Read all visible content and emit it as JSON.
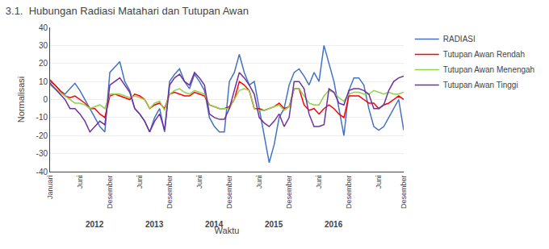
{
  "chart_data": {
    "type": "line",
    "title": "3.1.  Hubungan Radiasi Matahari dan Tutupan Awan",
    "ylabel": "Normalisasi",
    "xlabel": "Waktu",
    "categories": [
      "Januari",
      null,
      null,
      null,
      null,
      null,
      "Juni",
      null,
      null,
      null,
      null,
      null,
      "Desember",
      null,
      null,
      null,
      null,
      null,
      "Juni",
      null,
      null,
      null,
      null,
      null,
      "Desember",
      null,
      null,
      null,
      null,
      null,
      "Juni",
      null,
      null,
      null,
      null,
      null,
      "Desember",
      null,
      null,
      null,
      null,
      null,
      "Juni",
      null,
      null,
      null,
      null,
      null,
      "Desember",
      null,
      null,
      null,
      null,
      null,
      "Juni",
      null,
      null,
      null,
      null,
      null,
      "Desember",
      null,
      null,
      null,
      null,
      null,
      "Juni",
      null,
      null,
      null,
      null,
      "Desember"
    ],
    "series": [
      {
        "name": "RADIASI",
        "color": "#4472C4",
        "values": [
          10,
          8,
          5,
          3,
          6,
          9,
          5,
          0,
          -5,
          -10,
          -15,
          -18,
          15,
          18,
          21,
          10,
          5,
          -5,
          -8,
          -12,
          -18,
          -10,
          -5,
          -18,
          10,
          14,
          17,
          10,
          6,
          14,
          10,
          5,
          -10,
          -15,
          -18,
          -18,
          10,
          15,
          25,
          15,
          8,
          10,
          -5,
          -20,
          -35,
          -25,
          -10,
          -5,
          8,
          15,
          17,
          13,
          8,
          15,
          10,
          30,
          20,
          10,
          -5,
          -20,
          5,
          12,
          12,
          8,
          -5,
          -15,
          -17,
          -15,
          -10,
          -5,
          0,
          -17
        ]
      },
      {
        "name": "Tutupan Awan Rendah",
        "color": "#FF0000",
        "values": [
          11,
          8,
          5,
          2,
          1,
          2,
          0,
          -2,
          -5,
          -5,
          -8,
          -10,
          2,
          3,
          2,
          1,
          0,
          3,
          2,
          0,
          -5,
          -3,
          -2,
          -5,
          3,
          4,
          3,
          2,
          2,
          4,
          3,
          2,
          -3,
          -4,
          -5,
          -5,
          -4,
          0,
          10,
          8,
          5,
          -5,
          -5,
          -6,
          -5,
          -4,
          -2,
          -5,
          -4,
          6,
          6,
          -3,
          -6,
          -5,
          -8,
          -5,
          -3,
          -5,
          -8,
          -10,
          2,
          2,
          2,
          0,
          -2,
          -2,
          -5,
          -3,
          -2,
          0,
          2,
          0
        ]
      },
      {
        "name": "Tutupan Awan Menengah",
        "color": "#92D050",
        "values": [
          8,
          6,
          4,
          2,
          0,
          -2,
          -2,
          -3,
          -5,
          -4,
          -3,
          -5,
          3,
          3,
          3,
          2,
          1,
          2,
          1,
          0,
          -5,
          -2,
          -1,
          -6,
          3,
          5,
          6,
          4,
          3,
          5,
          4,
          3,
          -3,
          -4,
          -5,
          -5,
          -5,
          0,
          5,
          6,
          5,
          -5,
          -6,
          -6,
          -5,
          -4,
          -3,
          -6,
          -4,
          6,
          6,
          2,
          -2,
          -3,
          -3,
          2,
          5,
          4,
          1,
          -1,
          3,
          4,
          4,
          3,
          3,
          5,
          4,
          3,
          4,
          3,
          3,
          4
        ]
      },
      {
        "name": "Tutupan Awan Tinggi",
        "color": "#7030A0",
        "values": [
          9,
          6,
          3,
          0,
          -5,
          -5,
          -8,
          -12,
          -18,
          -15,
          -12,
          -14,
          8,
          10,
          12,
          8,
          4,
          -5,
          -8,
          -12,
          -18,
          -12,
          -8,
          -17,
          8,
          12,
          14,
          10,
          8,
          15,
          12,
          8,
          -8,
          -10,
          -11,
          -11,
          -5,
          5,
          15,
          12,
          8,
          3,
          -10,
          -13,
          -15,
          -12,
          -8,
          -15,
          -10,
          10,
          10,
          6,
          -8,
          -15,
          -15,
          -14,
          6,
          4,
          -2,
          -3,
          5,
          6,
          6,
          5,
          3,
          -5,
          -5,
          -3,
          5,
          10,
          12,
          13
        ]
      }
    ],
    "annotations": [
      {
        "text": "2012",
        "x": 9
      },
      {
        "text": "2013",
        "x": 21
      },
      {
        "text": "2014",
        "x": 33
      },
      {
        "text": "2015",
        "x": 45
      },
      {
        "text": "2016",
        "x": 57
      }
    ],
    "ylim": [
      -40,
      40
    ],
    "yticks": [
      -40,
      -30,
      -20,
      -10,
      0,
      10,
      20,
      30,
      40
    ],
    "grid": true,
    "legend": "right"
  }
}
